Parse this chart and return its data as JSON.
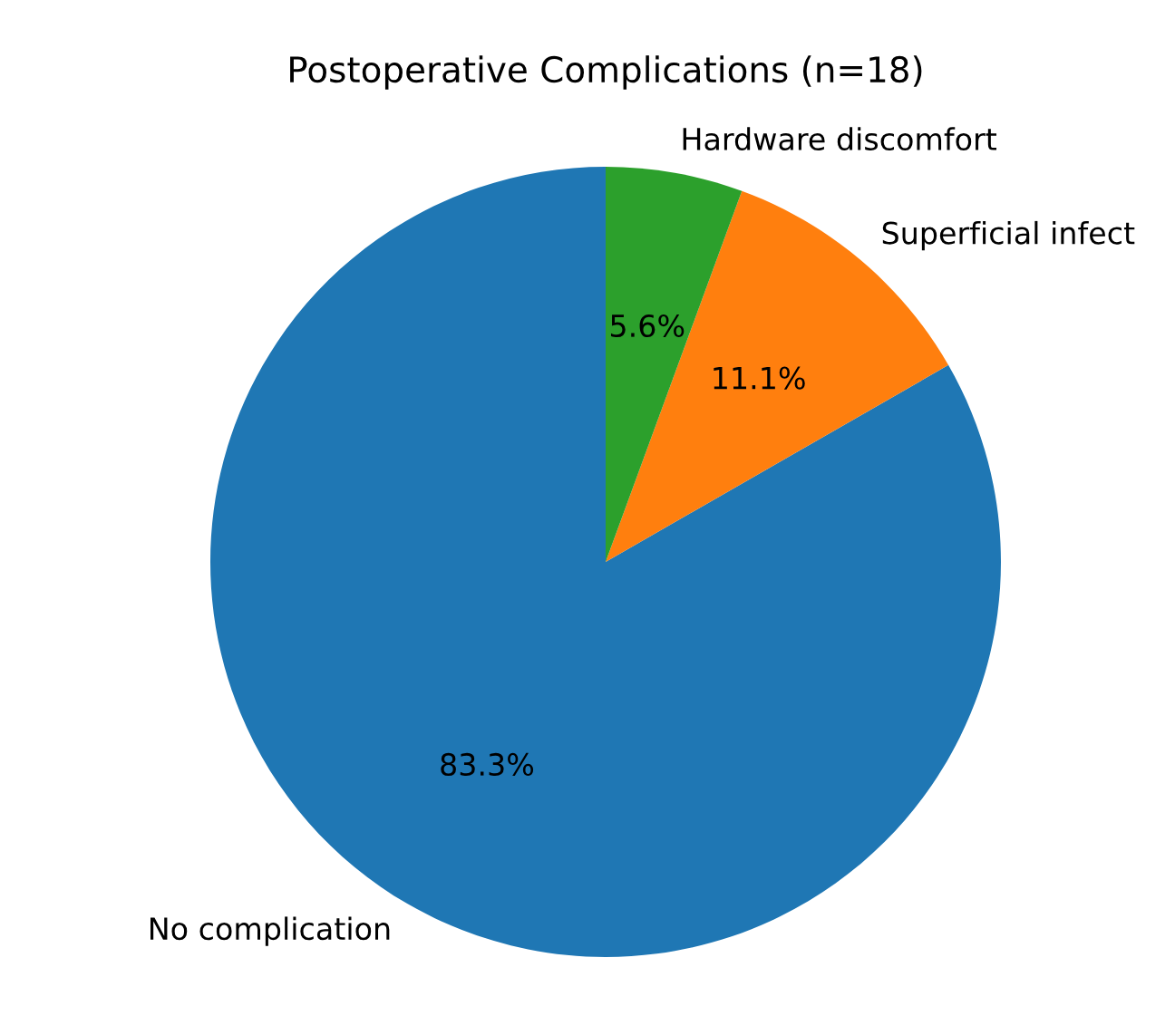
{
  "chart_data": {
    "type": "pie",
    "title": "Postoperative Complications (n=18)",
    "categories": [
      "No complication",
      "Superficial infect",
      "Hardware discomfort"
    ],
    "values": [
      83.3,
      11.1,
      5.6
    ],
    "colors": [
      "#1f77b4",
      "#ff7f0e",
      "#2ca02c"
    ],
    "value_labels": [
      "83.3%",
      "11.1%",
      "5.6%"
    ]
  }
}
